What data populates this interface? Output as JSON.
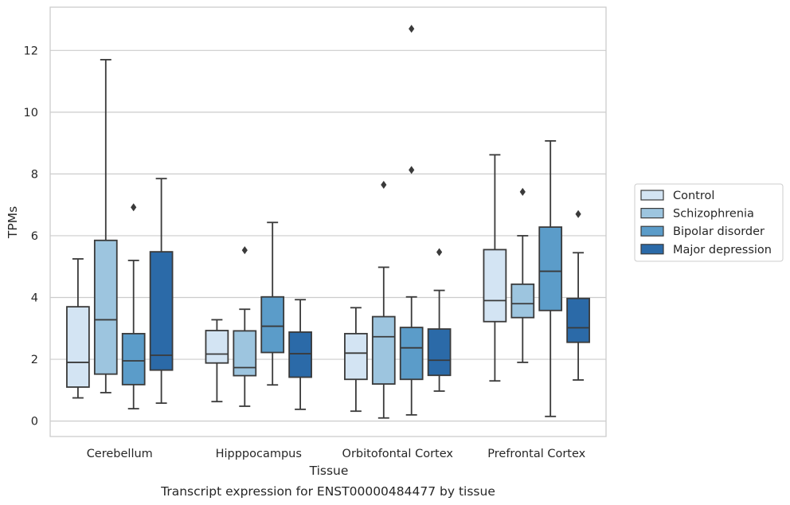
{
  "chart_data": {
    "type": "box",
    "title": "",
    "caption": "Transcript expression for ENST00000484477 by tissue",
    "xlabel": "Tissue",
    "ylabel": "TPMs",
    "ylim": [
      -0.5,
      13.4
    ],
    "yticks": [
      0,
      2,
      4,
      6,
      8,
      10,
      12
    ],
    "grid": "horizontal",
    "legend_position": "right",
    "categories": [
      "Cerebellum",
      "Hipppocampus",
      "Orbitofontal Cortex",
      "Prefrontal Cortex"
    ],
    "series": [
      {
        "name": "Control",
        "color": "#d3e4f3",
        "boxes": [
          {
            "whislo": 0.75,
            "q1": 1.1,
            "med": 1.9,
            "q3": 3.7,
            "whishi": 5.25,
            "fliers": []
          },
          {
            "whislo": 0.63,
            "q1": 1.88,
            "med": 2.17,
            "q3": 2.93,
            "whishi": 3.28,
            "fliers": []
          },
          {
            "whislo": 0.32,
            "q1": 1.35,
            "med": 2.2,
            "q3": 2.83,
            "whishi": 3.67,
            "fliers": []
          },
          {
            "whislo": 1.3,
            "q1": 3.22,
            "med": 3.9,
            "q3": 5.55,
            "whishi": 8.62,
            "fliers": []
          }
        ]
      },
      {
        "name": "Schizophrenia",
        "color": "#9dc5df",
        "boxes": [
          {
            "whislo": 0.92,
            "q1": 1.52,
            "med": 3.28,
            "q3": 5.85,
            "whishi": 11.7,
            "fliers": []
          },
          {
            "whislo": 0.48,
            "q1": 1.47,
            "med": 1.73,
            "q3": 2.92,
            "whishi": 3.62,
            "fliers": [
              5.53
            ]
          },
          {
            "whislo": 0.1,
            "q1": 1.2,
            "med": 2.73,
            "q3": 3.38,
            "whishi": 4.98,
            "fliers": [
              7.65
            ]
          },
          {
            "whislo": 1.9,
            "q1": 3.35,
            "med": 3.8,
            "q3": 4.43,
            "whishi": 6.0,
            "fliers": [
              7.42
            ]
          }
        ]
      },
      {
        "name": "Bipolar disorder",
        "color": "#5b9cc9",
        "boxes": [
          {
            "whislo": 0.4,
            "q1": 1.18,
            "med": 1.95,
            "q3": 2.83,
            "whishi": 5.2,
            "fliers": [
              6.92
            ]
          },
          {
            "whislo": 1.17,
            "q1": 2.22,
            "med": 3.07,
            "q3": 4.02,
            "whishi": 6.43,
            "fliers": []
          },
          {
            "whislo": 0.2,
            "q1": 1.35,
            "med": 2.37,
            "q3": 3.03,
            "whishi": 4.02,
            "fliers": [
              8.13,
              12.7
            ]
          },
          {
            "whislo": 0.15,
            "q1": 3.58,
            "med": 4.85,
            "q3": 6.28,
            "whishi": 9.07,
            "fliers": []
          }
        ]
      },
      {
        "name": "Major depression",
        "color": "#2b6aa8",
        "boxes": [
          {
            "whislo": 0.58,
            "q1": 1.65,
            "med": 2.13,
            "q3": 5.48,
            "whishi": 7.85,
            "fliers": []
          },
          {
            "whislo": 0.38,
            "q1": 1.42,
            "med": 2.18,
            "q3": 2.88,
            "whishi": 3.93,
            "fliers": []
          },
          {
            "whislo": 0.97,
            "q1": 1.48,
            "med": 1.97,
            "q3": 2.98,
            "whishi": 4.23,
            "fliers": [
              5.47
            ]
          },
          {
            "whislo": 1.33,
            "q1": 2.55,
            "med": 3.02,
            "q3": 3.97,
            "whishi": 5.45,
            "fliers": [
              6.7
            ]
          }
        ]
      }
    ]
  }
}
